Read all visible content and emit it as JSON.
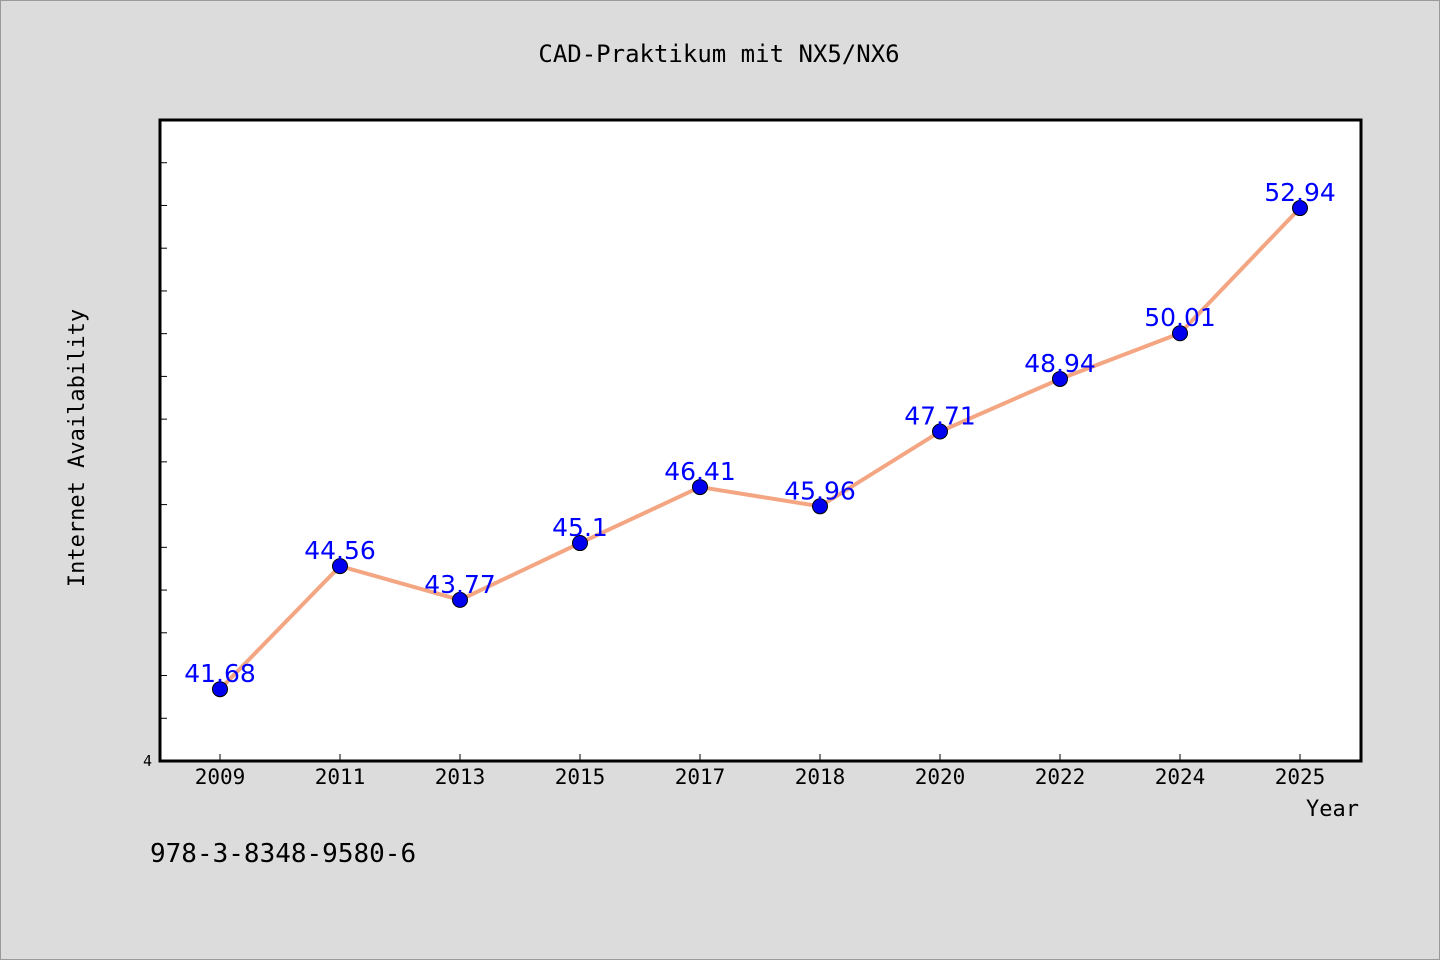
{
  "chart_data": {
    "type": "line",
    "title": "CAD-Praktikum mit NX5/NX6",
    "xlabel": "Year",
    "ylabel": "Internet Availability",
    "categories": [
      "2009",
      "2011",
      "2013",
      "2015",
      "2017",
      "2018",
      "2020",
      "2022",
      "2024",
      "2025"
    ],
    "series": [
      {
        "values": [
          41.68,
          44.56,
          43.77,
          45.1,
          46.41,
          45.96,
          47.71,
          48.94,
          50.01,
          52.94
        ]
      }
    ],
    "data_labels": [
      "41.68",
      "44.56",
      "43.77",
      "45.1",
      "46.41",
      "45.96",
      "47.71",
      "48.94",
      "50.01",
      "52.94"
    ],
    "y_tick_labels": [
      "4"
    ],
    "ylim": [
      40,
      55
    ],
    "grid": false,
    "line_color": "#f4a582",
    "marker_color": "#0000ee",
    "label_color": "#0000ff",
    "plot_background": "#ffffff",
    "figure_background": "#dcdcdc"
  },
  "footer": {
    "isbn": "978-3-8348-9580-6"
  }
}
